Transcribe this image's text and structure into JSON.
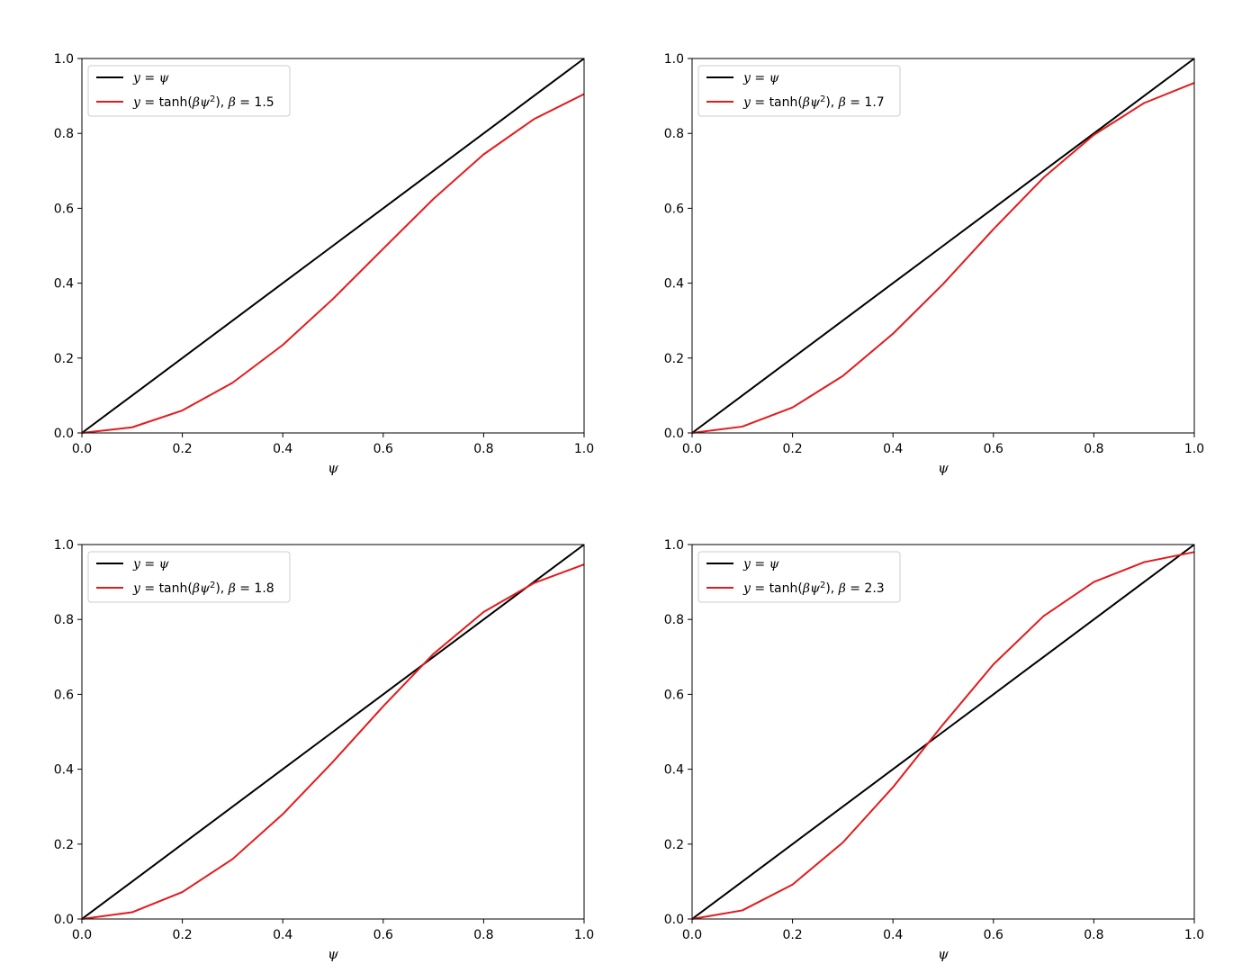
{
  "chart_data": [
    {
      "type": "line",
      "xlabel": "ψ",
      "ylabel": "",
      "xlim": [
        0,
        1
      ],
      "ylim": [
        0,
        1
      ],
      "xticks": [
        "0.0",
        "0.2",
        "0.4",
        "0.6",
        "0.8",
        "1.0"
      ],
      "yticks": [
        "0.0",
        "0.2",
        "0.4",
        "0.6",
        "0.8",
        "1.0"
      ],
      "legend_position": "upper-left",
      "x": [
        0.0,
        0.1,
        0.2,
        0.3,
        0.4,
        0.5,
        0.6,
        0.7,
        0.8,
        0.9,
        1.0
      ],
      "series": [
        {
          "legend": "y = ψ",
          "color": "#000000",
          "y": [
            0.0,
            0.1,
            0.2,
            0.3,
            0.4,
            0.5,
            0.6,
            0.7,
            0.8,
            0.9,
            1.0
          ]
        },
        {
          "legend": "y = tanh(βψ²), β = 1.5",
          "color": "#e41a1c",
          "y": [
            0.0,
            0.015,
            0.06,
            0.134,
            0.235,
            0.358,
            0.492,
            0.625,
            0.744,
            0.838,
            0.905
          ]
        }
      ]
    },
    {
      "type": "line",
      "xlabel": "ψ",
      "ylabel": "",
      "xlim": [
        0,
        1
      ],
      "ylim": [
        0,
        1
      ],
      "xticks": [
        "0.0",
        "0.2",
        "0.4",
        "0.6",
        "0.8",
        "1.0"
      ],
      "yticks": [
        "0.0",
        "0.2",
        "0.4",
        "0.6",
        "0.8",
        "1.0"
      ],
      "legend_position": "upper-left",
      "x": [
        0.0,
        0.1,
        0.2,
        0.3,
        0.4,
        0.5,
        0.6,
        0.7,
        0.8,
        0.9,
        1.0
      ],
      "series": [
        {
          "legend": "y = ψ",
          "color": "#000000",
          "y": [
            0.0,
            0.1,
            0.2,
            0.3,
            0.4,
            0.5,
            0.6,
            0.7,
            0.8,
            0.9,
            1.0
          ]
        },
        {
          "legend": "y = tanh(βψ²), β = 1.7",
          "color": "#e41a1c",
          "y": [
            0.0,
            0.017,
            0.068,
            0.152,
            0.265,
            0.398,
            0.544,
            0.682,
            0.796,
            0.881,
            0.935
          ]
        }
      ]
    },
    {
      "type": "line",
      "xlabel": "ψ",
      "ylabel": "",
      "xlim": [
        0,
        1
      ],
      "ylim": [
        0,
        1
      ],
      "xticks": [
        "0.0",
        "0.2",
        "0.4",
        "0.6",
        "0.8",
        "1.0"
      ],
      "yticks": [
        "0.0",
        "0.2",
        "0.4",
        "0.6",
        "0.8",
        "1.0"
      ],
      "legend_position": "upper-left",
      "x": [
        0.0,
        0.1,
        0.2,
        0.3,
        0.4,
        0.5,
        0.6,
        0.7,
        0.8,
        0.9,
        1.0
      ],
      "series": [
        {
          "legend": "y = ψ",
          "color": "#000000",
          "y": [
            0.0,
            0.1,
            0.2,
            0.3,
            0.4,
            0.5,
            0.6,
            0.7,
            0.8,
            0.9,
            1.0
          ]
        },
        {
          "legend": "y = tanh(βψ²), β = 1.8",
          "color": "#e41a1c",
          "y": [
            0.0,
            0.018,
            0.072,
            0.16,
            0.28,
            0.42,
            0.568,
            0.708,
            0.82,
            0.897,
            0.947
          ]
        }
      ]
    },
    {
      "type": "line",
      "xlabel": "ψ",
      "ylabel": "",
      "xlim": [
        0,
        1
      ],
      "ylim": [
        0,
        1
      ],
      "xticks": [
        "0.0",
        "0.2",
        "0.4",
        "0.6",
        "0.8",
        "1.0"
      ],
      "yticks": [
        "0.0",
        "0.2",
        "0.4",
        "0.6",
        "0.8",
        "1.0"
      ],
      "legend_position": "upper-left",
      "x": [
        0.0,
        0.1,
        0.2,
        0.3,
        0.4,
        0.5,
        0.6,
        0.7,
        0.8,
        0.9,
        1.0
      ],
      "series": [
        {
          "legend": "y = ψ",
          "color": "#000000",
          "y": [
            0.0,
            0.1,
            0.2,
            0.3,
            0.4,
            0.5,
            0.6,
            0.7,
            0.8,
            0.9,
            1.0
          ]
        },
        {
          "legend": "y = tanh(βψ²), β = 2.3",
          "color": "#e41a1c",
          "y": [
            0.0,
            0.023,
            0.092,
            0.204,
            0.352,
            0.52,
            0.68,
            0.809,
            0.9,
            0.953,
            0.98
          ]
        }
      ]
    }
  ]
}
